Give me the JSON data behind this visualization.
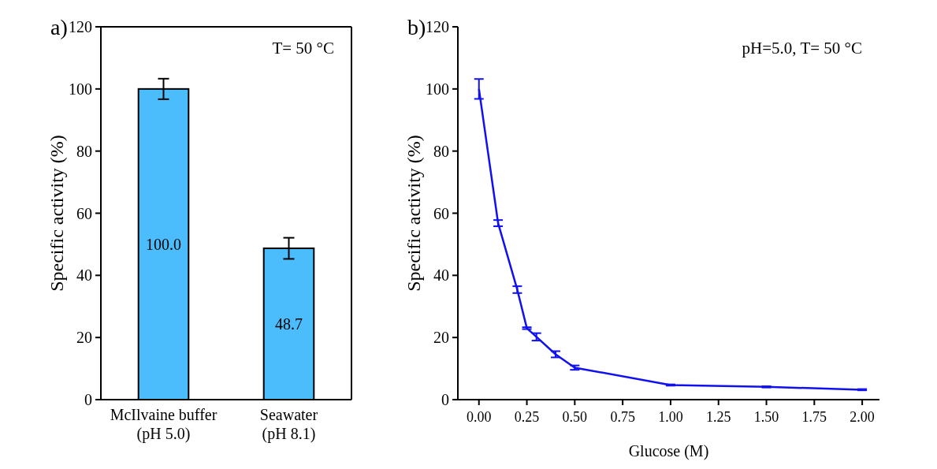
{
  "chart_data": [
    {
      "type": "bar",
      "title": "a)",
      "ylabel": "Specific activity (%)",
      "categories": [
        "McIlvaine buffer\n(pH 5.0)",
        "Seawater\n(pH 8.1)"
      ],
      "values": [
        100.0,
        48.7
      ],
      "errors": [
        3.3,
        3.4
      ],
      "value_labels": [
        "100.0",
        "48.7"
      ],
      "color": "#4bbcfc",
      "ylim": [
        0,
        120
      ],
      "yticks": [
        0,
        20,
        40,
        60,
        80,
        100,
        120
      ],
      "annotations": [
        "T= 50 °C"
      ]
    },
    {
      "type": "line",
      "title": "b)",
      "xlabel": "Glucose (M)",
      "ylabel": "Specific activity (%)",
      "x": [
        0,
        0.1,
        0.2,
        0.25,
        0.3,
        0.4,
        0.5,
        1.0,
        1.5,
        2.0
      ],
      "values": [
        100,
        56.8,
        35.4,
        23.0,
        20.2,
        14.6,
        10.3,
        4.7,
        4.1,
        3.2
      ],
      "errors": [
        3.2,
        1.0,
        1.1,
        0.3,
        1.2,
        1.0,
        0.7,
        0.2,
        0.2,
        0.2
      ],
      "color": "#1010f0",
      "xlim": [
        -0.11,
        2.09
      ],
      "xticks": [
        {
          "value": 0,
          "label": "0.00"
        },
        {
          "value": 0.25,
          "label": "0.25"
        },
        {
          "value": 0.5,
          "label": "0.50"
        },
        {
          "value": 0.75,
          "label": "0.75"
        },
        {
          "value": 1,
          "label": "1.00"
        },
        {
          "value": 1.25,
          "label": "1.25"
        },
        {
          "value": 1.5,
          "label": "1.50"
        },
        {
          "value": 1.75,
          "label": "1.75"
        },
        {
          "value": 2,
          "label": "2.00"
        }
      ],
      "ylim": [
        0,
        120
      ],
      "yticks": [
        0,
        20,
        40,
        60,
        80,
        100,
        120
      ],
      "annotations": [
        "pH=5.0, T= 50 °C"
      ]
    }
  ]
}
